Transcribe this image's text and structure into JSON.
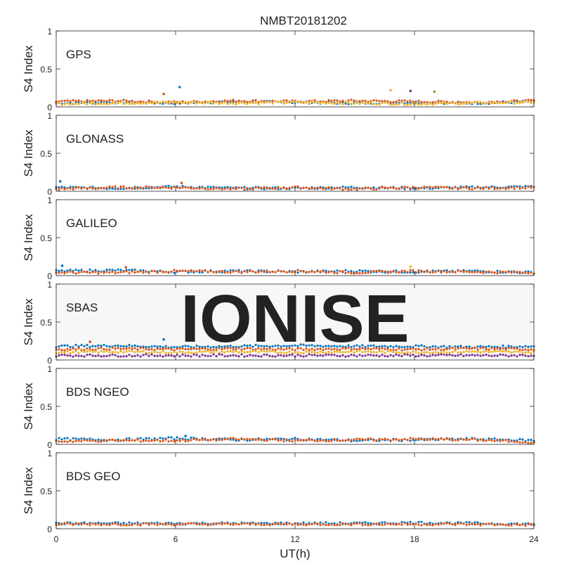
{
  "chart_data": {
    "type": "scatter",
    "title": "NMBT20181202",
    "xlabel": "UT(h)",
    "ylabel": "S4 Index",
    "xlim": [
      0,
      24
    ],
    "ylim": [
      0,
      1
    ],
    "xticks": [
      "0",
      "6",
      "12",
      "18",
      "24"
    ],
    "yticks": [
      "0",
      "0.5",
      "1"
    ],
    "watermark": "IONISE",
    "series_colors": [
      "#0072BD",
      "#D95319",
      "#EDB120",
      "#7E2F8E",
      "#77AC30",
      "#4DBEEE",
      "#A2142F"
    ],
    "panels": [
      {
        "name": "GPS",
        "series": [
          {
            "x": [
              0,
              3,
              6,
              9,
              12,
              15,
              18,
              21,
              24
            ],
            "y": [
              0.05,
              0.06,
              0.05,
              0.07,
              0.06,
              0.05,
              0.06,
              0.05,
              0.07
            ]
          },
          {
            "x": [
              0,
              3,
              6,
              9,
              12,
              15,
              18,
              21,
              24
            ],
            "y": [
              0.07,
              0.08,
              0.06,
              0.08,
              0.07,
              0.08,
              0.07,
              0.06,
              0.08
            ]
          },
          {
            "x": [
              0,
              3,
              6,
              9,
              12,
              15,
              18,
              21,
              24
            ],
            "y": [
              0.04,
              0.05,
              0.06,
              0.05,
              0.06,
              0.05,
              0.04,
              0.05,
              0.06
            ]
          }
        ],
        "outliers": [
          {
            "x": 6.2,
            "y": 0.26
          },
          {
            "x": 5.4,
            "y": 0.17
          },
          {
            "x": 16.8,
            "y": 0.22
          },
          {
            "x": 17.8,
            "y": 0.21
          },
          {
            "x": 19.0,
            "y": 0.2
          }
        ]
      },
      {
        "name": "GLONASS",
        "series": [
          {
            "x": [
              0,
              3,
              6,
              9,
              12,
              15,
              18,
              21,
              24
            ],
            "y": [
              0.05,
              0.04,
              0.06,
              0.04,
              0.04,
              0.05,
              0.04,
              0.05,
              0.06
            ]
          },
          {
            "x": [
              0,
              3,
              6,
              9,
              12,
              15,
              18,
              21,
              24
            ],
            "y": [
              0.03,
              0.05,
              0.05,
              0.03,
              0.05,
              0.03,
              0.05,
              0.04,
              0.05
            ]
          }
        ],
        "outliers": [
          {
            "x": 0.2,
            "y": 0.13
          },
          {
            "x": 6.3,
            "y": 0.11
          }
        ]
      },
      {
        "name": "GALILEO",
        "series": [
          {
            "x": [
              0,
              3,
              6,
              9,
              12,
              15,
              18,
              21,
              24
            ],
            "y": [
              0.06,
              0.07,
              0.05,
              0.06,
              0.05,
              0.06,
              0.05,
              0.06,
              0.04
            ]
          },
          {
            "x": [
              0,
              3,
              6,
              9,
              12,
              15,
              18,
              21,
              24
            ],
            "y": [
              0.04,
              0.04,
              0.06,
              0.05,
              0.06,
              0.04,
              0.06,
              0.05,
              0.04
            ]
          }
        ],
        "outliers": [
          {
            "x": 0.3,
            "y": 0.13
          },
          {
            "x": 3.5,
            "y": 0.11
          },
          {
            "x": 17.8,
            "y": 0.12
          }
        ]
      },
      {
        "name": "SBAS",
        "series": [
          {
            "x": [
              0,
              3,
              6,
              9,
              12,
              15,
              18,
              21,
              24
            ],
            "y": [
              0.18,
              0.19,
              0.17,
              0.18,
              0.19,
              0.18,
              0.18,
              0.17,
              0.18
            ]
          },
          {
            "x": [
              0,
              3,
              6,
              9,
              12,
              15,
              18,
              21,
              24
            ],
            "y": [
              0.14,
              0.15,
              0.14,
              0.15,
              0.14,
              0.15,
              0.14,
              0.15,
              0.14
            ]
          },
          {
            "x": [
              0,
              3,
              6,
              9,
              12,
              15,
              18,
              21,
              24
            ],
            "y": [
              0.1,
              0.11,
              0.1,
              0.11,
              0.1,
              0.11,
              0.1,
              0.11,
              0.1
            ]
          },
          {
            "x": [
              0,
              3,
              6,
              9,
              12,
              15,
              18,
              21,
              24
            ],
            "y": [
              0.06,
              0.06,
              0.06,
              0.06,
              0.06,
              0.06,
              0.06,
              0.06,
              0.06
            ]
          }
        ],
        "outliers": [
          {
            "x": 5.4,
            "y": 0.27
          },
          {
            "x": 1.7,
            "y": 0.24
          }
        ]
      },
      {
        "name": "BDS NGEO",
        "series": [
          {
            "x": [
              0,
              3,
              6,
              9,
              12,
              15,
              18,
              21,
              24
            ],
            "y": [
              0.07,
              0.06,
              0.08,
              0.06,
              0.07,
              0.05,
              0.06,
              0.07,
              0.05
            ]
          },
          {
            "x": [
              0,
              3,
              6,
              9,
              12,
              15,
              18,
              21,
              24
            ],
            "y": [
              0.04,
              0.05,
              0.05,
              0.07,
              0.05,
              0.06,
              0.07,
              0.06,
              0.03
            ]
          }
        ],
        "outliers": [
          {
            "x": 6.5,
            "y": 0.11
          }
        ]
      },
      {
        "name": "BDS GEO",
        "series": [
          {
            "x": [
              0,
              3,
              6,
              9,
              12,
              15,
              18,
              21,
              24
            ],
            "y": [
              0.07,
              0.07,
              0.07,
              0.07,
              0.07,
              0.07,
              0.08,
              0.07,
              0.06
            ]
          },
          {
            "x": [
              0,
              3,
              6,
              9,
              12,
              15,
              18,
              21,
              24
            ],
            "y": [
              0.06,
              0.06,
              0.06,
              0.06,
              0.06,
              0.06,
              0.06,
              0.06,
              0.05
            ]
          }
        ],
        "outliers": []
      }
    ]
  }
}
